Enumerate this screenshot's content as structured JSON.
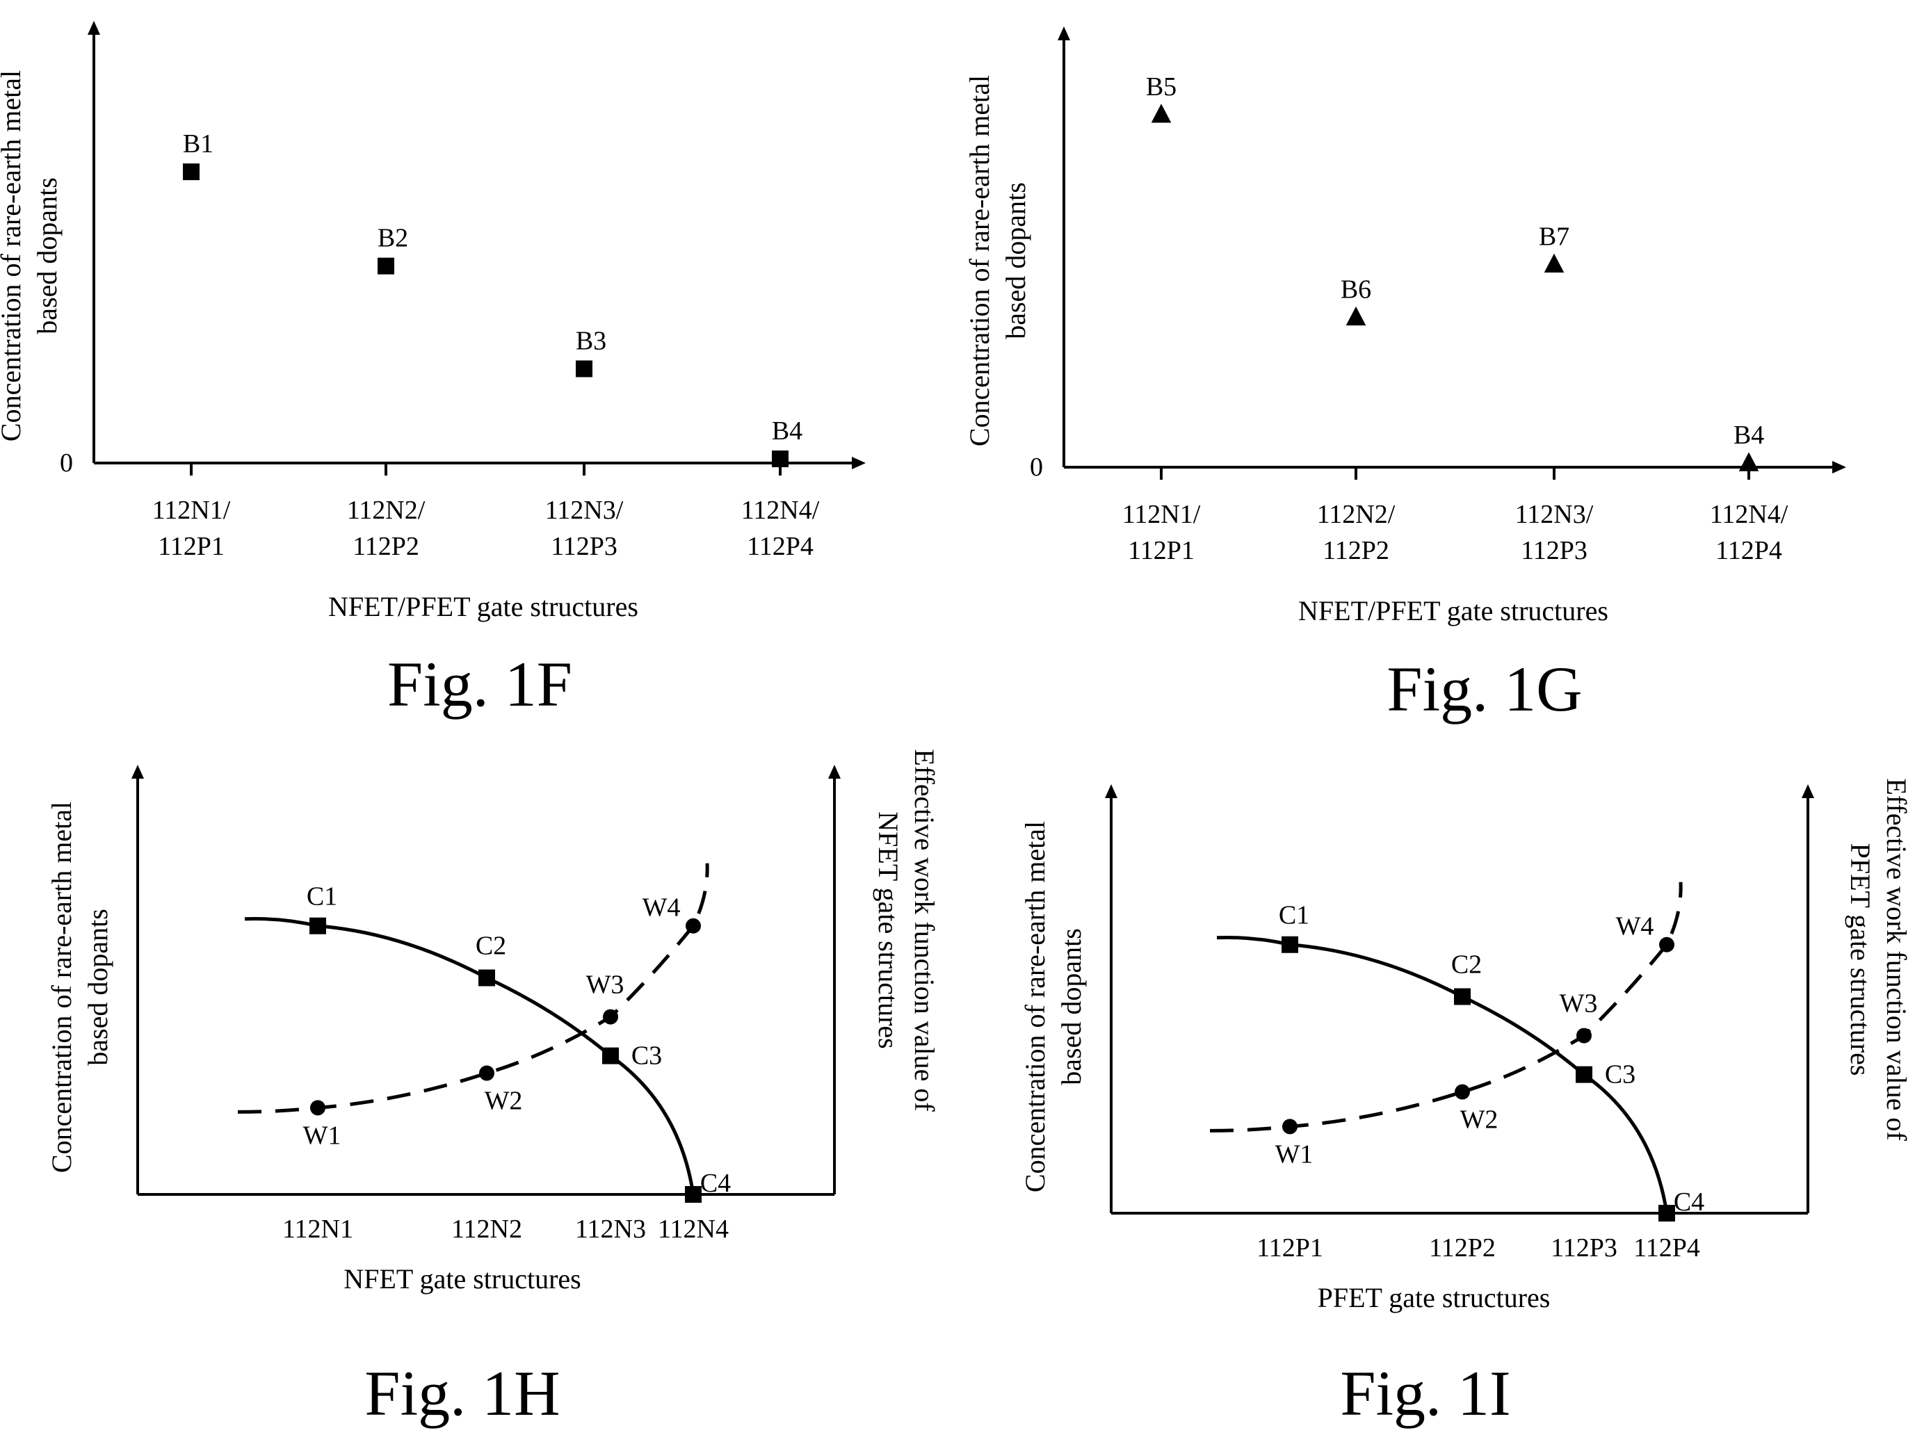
{
  "figures": [
    {
      "id": "1F",
      "caption": "Fig. 1F",
      "chart_data": {
        "type": "scatter",
        "ylabel": [
          "Concentration of rare-earth metal",
          "based dopants"
        ],
        "xlabel": "NFET/PFET gate structures",
        "y_origin_label": "0",
        "categories": [
          [
            "112N1/",
            "112P1"
          ],
          [
            "112N2/",
            "112P2"
          ],
          [
            "112N3/",
            "112P3"
          ],
          [
            "112N4/",
            "112P4"
          ]
        ],
        "marker": "square",
        "points": [
          {
            "label": "B1",
            "category_index": 0,
            "value": 0.68
          },
          {
            "label": "B2",
            "category_index": 1,
            "value": 0.46
          },
          {
            "label": "B3",
            "category_index": 2,
            "value": 0.22
          },
          {
            "label": "B4",
            "category_index": 3,
            "value": 0.0
          }
        ],
        "ylim": [
          0,
          1
        ]
      }
    },
    {
      "id": "1G",
      "caption": "Fig. 1G",
      "chart_data": {
        "type": "scatter",
        "ylabel": [
          "Concentration of rare-earth metal",
          "based dopants"
        ],
        "xlabel": "NFET/PFET gate structures",
        "y_origin_label": "0",
        "categories": [
          [
            "112N1/",
            "112P1"
          ],
          [
            "112N2/",
            "112P2"
          ],
          [
            "112N3/",
            "112P3"
          ],
          [
            "112N4/",
            "112P4"
          ]
        ],
        "marker": "triangle",
        "points": [
          {
            "label": "B5",
            "category_index": 0,
            "value": 0.8
          },
          {
            "label": "B6",
            "category_index": 1,
            "value": 0.34
          },
          {
            "label": "B7",
            "category_index": 2,
            "value": 0.46
          },
          {
            "label": "B4",
            "category_index": 3,
            "value": 0.0
          }
        ],
        "ylim": [
          0,
          1
        ]
      }
    },
    {
      "id": "1H",
      "caption": "Fig. 1H",
      "chart_data": {
        "type": "line",
        "ylabel": [
          "Concentration of rare-earth metal",
          "based dopants"
        ],
        "y2label": [
          "Effective work function value of",
          "NFET gate structures"
        ],
        "xlabel": "NFET gate structures",
        "categories": [
          "112N1",
          "112N2",
          "112N3",
          "112N4"
        ],
        "series": [
          {
            "style": "solid",
            "marker": "square",
            "labels": [
              "C1",
              "C2",
              "C3",
              "C4"
            ],
            "values": [
              0.62,
              0.5,
              0.32,
              0.0
            ]
          },
          {
            "style": "dashed",
            "marker": "circle",
            "labels": [
              "W1",
              "W2",
              "W3",
              "W4"
            ],
            "values": [
              0.2,
              0.28,
              0.41,
              0.62
            ]
          }
        ],
        "ylim": [
          0,
          1
        ]
      }
    },
    {
      "id": "1I",
      "caption": "Fig. 1I",
      "chart_data": {
        "type": "line",
        "ylabel": [
          "Concentration of rare-earth metal",
          "based dopants"
        ],
        "y2label": [
          "Effective work function value of",
          "PFET gate structures"
        ],
        "xlabel": "PFET gate structures",
        "categories": [
          "112P1",
          "112P2",
          "112P3",
          "112P4"
        ],
        "series": [
          {
            "style": "solid",
            "marker": "square",
            "labels": [
              "C1",
              "C2",
              "C3",
              "C4"
            ],
            "values": [
              0.62,
              0.5,
              0.32,
              0.0
            ]
          },
          {
            "style": "dashed",
            "marker": "circle",
            "labels": [
              "W1",
              "W2",
              "W3",
              "W4"
            ],
            "values": [
              0.2,
              0.28,
              0.41,
              0.62
            ]
          }
        ],
        "ylim": [
          0,
          1
        ]
      }
    }
  ]
}
